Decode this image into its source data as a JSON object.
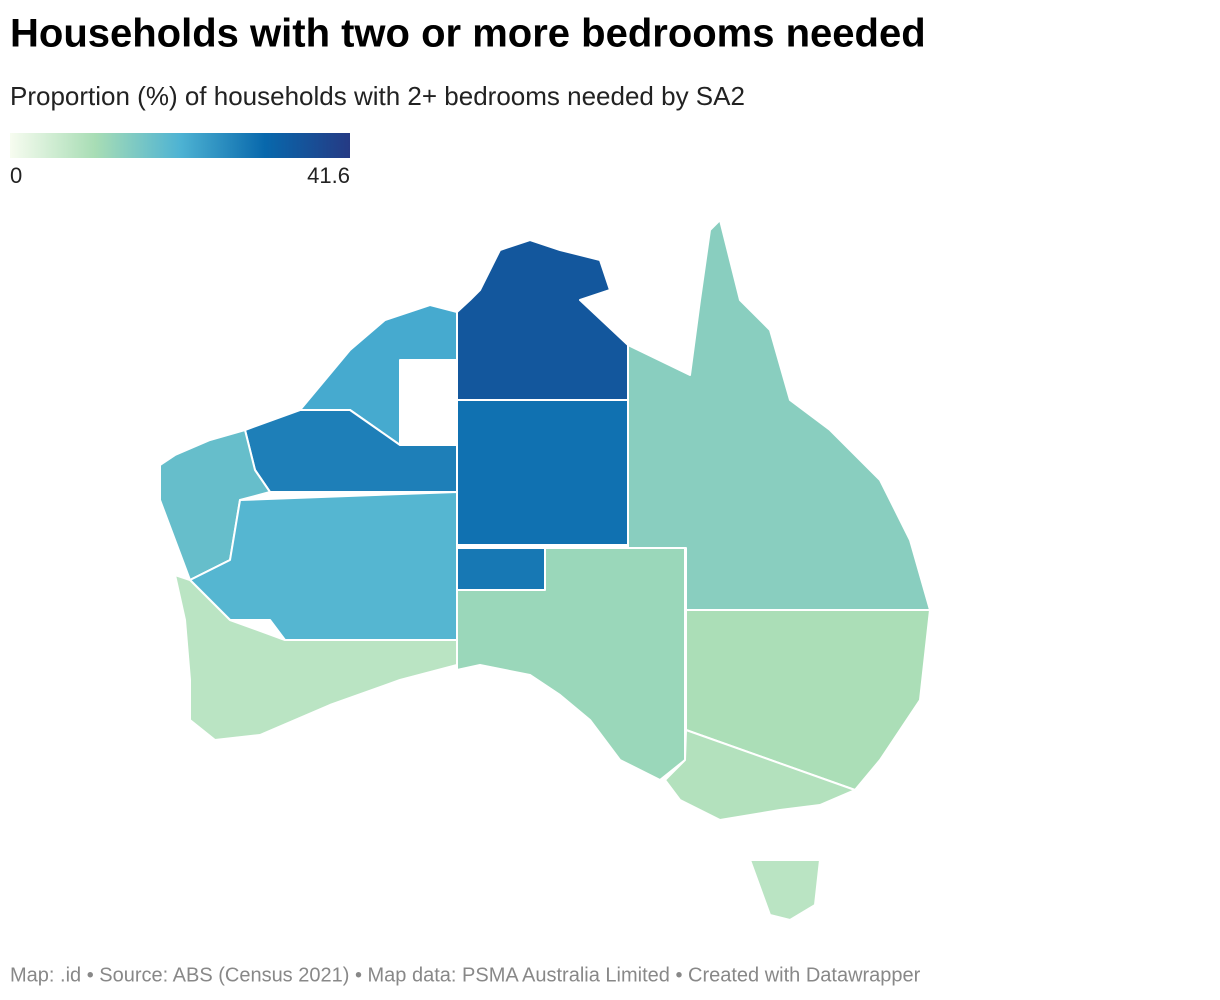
{
  "chart_data": {
    "type": "choropleth",
    "title": "Households with two or more bedrooms needed",
    "subtitle": "Proportion (%) of households with 2+ bedrooms needed by SA2",
    "legend": {
      "min": 0,
      "max": 41.6,
      "colors": [
        "#f7fcf0",
        "#a8ddb5",
        "#4eb3d3",
        "#0868ac",
        "#253a84"
      ]
    },
    "regions": [
      {
        "values": 22
      },
      {
        "values": 28
      },
      {
        "values": 18
      },
      {
        "values": 20
      },
      {
        "values": 8
      },
      {
        "values": 35
      },
      {
        "values": 30
      },
      {
        "values": 29
      },
      {
        "values": 12
      },
      {
        "values": 14
      },
      {
        "values": 10
      },
      {
        "values": 9
      },
      {
        "values": 8
      }
    ],
    "source": "Map: .id • Source: ABS (Census 2021) • Map data: PSMA Australia Limited • Created with Datawrapper"
  }
}
